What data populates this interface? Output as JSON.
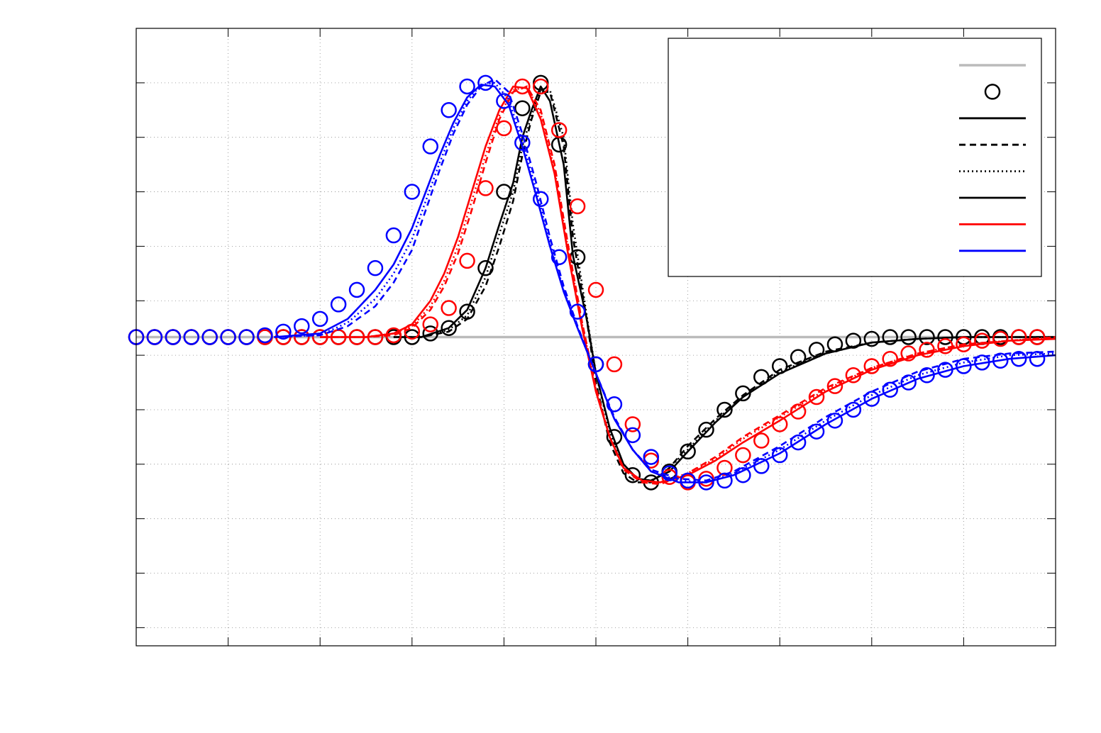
{
  "chart_data": {
    "type": "line",
    "title": "",
    "xlabel": "",
    "ylabel": "",
    "xlim": [
      0,
      10
    ],
    "ylim": [
      -1.7,
      1.7
    ],
    "x_ticks": [
      0,
      1,
      2,
      3,
      4,
      5,
      6,
      7,
      8,
      9,
      10
    ],
    "y_ticks": [
      -1.6,
      -1.3,
      -1.0,
      -0.7,
      -0.4,
      -0.1,
      0.2,
      0.5,
      0.8,
      1.1,
      1.4
    ],
    "grid": true,
    "legend": {
      "placement": "top-right",
      "entries": [
        {
          "color": "#bbbbbb",
          "style": "solid",
          "marker": "none"
        },
        {
          "color": "#000000",
          "style": "none",
          "marker": "circle"
        },
        {
          "color": "#000000",
          "style": "solid",
          "marker": "none"
        },
        {
          "color": "#000000",
          "style": "dashed",
          "marker": "none"
        },
        {
          "color": "#000000",
          "style": "dotted",
          "marker": "none"
        },
        {
          "color": "#000000",
          "style": "solid",
          "marker": "none"
        },
        {
          "color": "#ff0000",
          "style": "solid",
          "marker": "none"
        },
        {
          "color": "#0000ff",
          "style": "solid",
          "marker": "none"
        }
      ]
    },
    "baseline": {
      "y": 0.0,
      "color": "#bbbbbb"
    },
    "series": [
      {
        "color": "#000000",
        "marker": "circle",
        "x": [
          0.0,
          0.2,
          0.4,
          0.6,
          0.8,
          1.0,
          1.2,
          1.4,
          1.6,
          1.8,
          2.0,
          2.2,
          2.4,
          2.6,
          2.8,
          3.0,
          3.2,
          3.4,
          3.6,
          3.8,
          4.0,
          4.2,
          4.4,
          4.6,
          4.8,
          5.0,
          5.2,
          5.4,
          5.6,
          5.8,
          6.0,
          6.2,
          6.4,
          6.6,
          6.8,
          7.0,
          7.2,
          7.4,
          7.6,
          7.8,
          8.0,
          8.2,
          8.4,
          8.6,
          8.8,
          9.0,
          9.2,
          9.4,
          9.6,
          9.8
        ],
        "y": [
          0.0,
          0.0,
          0.0,
          0.0,
          0.0,
          0.0,
          0.0,
          0.0,
          0.0,
          0.0,
          0.0,
          0.0,
          0.0,
          0.0,
          0.0,
          0.0,
          0.02,
          0.05,
          0.14,
          0.38,
          0.8,
          1.26,
          1.4,
          1.06,
          0.44,
          -0.15,
          -0.55,
          -0.76,
          -0.8,
          -0.74,
          -0.63,
          -0.51,
          -0.4,
          -0.31,
          -0.22,
          -0.16,
          -0.11,
          -0.07,
          -0.04,
          -0.02,
          -0.01,
          0.0,
          0.0,
          0.0,
          0.0,
          0.0,
          0.0,
          0.0,
          0.0,
          0.0
        ]
      },
      {
        "color": "#000000",
        "style": "solid",
        "x": [
          2.8,
          3.1,
          3.4,
          3.6,
          3.8,
          3.95,
          4.1,
          4.2,
          4.3,
          4.4,
          4.5,
          4.65,
          4.75,
          4.9,
          5.0,
          5.15,
          5.3,
          5.45,
          5.6,
          5.8,
          6.0,
          6.3,
          6.6,
          7.0,
          7.5,
          8.0,
          8.5,
          9.0,
          10.0
        ],
        "y": [
          0.0,
          0.0,
          0.05,
          0.15,
          0.38,
          0.62,
          0.85,
          1.1,
          1.25,
          1.38,
          1.3,
          0.95,
          0.45,
          0.1,
          -0.2,
          -0.5,
          -0.7,
          -0.78,
          -0.79,
          -0.74,
          -0.63,
          -0.47,
          -0.33,
          -0.2,
          -0.09,
          -0.03,
          -0.01,
          0.0,
          0.0
        ]
      },
      {
        "color": "#000000",
        "style": "dashed",
        "x": [
          2.8,
          3.1,
          3.4,
          3.6,
          3.8,
          3.95,
          4.1,
          4.2,
          4.3,
          4.4,
          4.5,
          4.65,
          4.75,
          4.9,
          5.0,
          5.15,
          5.3,
          5.45,
          5.6,
          5.8,
          6.0,
          6.3,
          6.6,
          7.0,
          7.5,
          8.0,
          8.5,
          9.0,
          10.0
        ],
        "y": [
          0.0,
          0.0,
          0.03,
          0.1,
          0.28,
          0.5,
          0.75,
          1.0,
          1.2,
          1.35,
          1.35,
          1.05,
          0.55,
          0.1,
          -0.25,
          -0.58,
          -0.75,
          -0.8,
          -0.8,
          -0.72,
          -0.6,
          -0.45,
          -0.32,
          -0.18,
          -0.08,
          -0.03,
          -0.01,
          0.0,
          0.0
        ]
      },
      {
        "color": "#000000",
        "style": "dotted",
        "x": [
          2.8,
          3.1,
          3.4,
          3.6,
          3.8,
          3.95,
          4.1,
          4.2,
          4.3,
          4.4,
          4.5,
          4.65,
          4.75,
          4.9,
          5.0,
          5.15,
          5.3,
          5.45,
          5.6,
          5.8,
          6.0,
          6.3,
          6.6,
          7.0,
          7.5,
          8.0,
          8.5,
          9.0,
          10.0
        ],
        "y": [
          0.0,
          0.0,
          0.04,
          0.12,
          0.33,
          0.57,
          0.8,
          1.05,
          1.22,
          1.36,
          1.36,
          1.1,
          0.62,
          0.12,
          -0.2,
          -0.52,
          -0.72,
          -0.78,
          -0.79,
          -0.72,
          -0.62,
          -0.46,
          -0.33,
          -0.19,
          -0.09,
          -0.03,
          -0.01,
          0.0,
          0.0
        ]
      },
      {
        "color": "#ff0000",
        "marker": "circle",
        "x": [
          0.0,
          0.2,
          0.4,
          0.6,
          0.8,
          1.0,
          1.2,
          1.4,
          1.6,
          1.8,
          2.0,
          2.2,
          2.4,
          2.6,
          2.8,
          3.0,
          3.2,
          3.4,
          3.6,
          3.8,
          4.0,
          4.2,
          4.4,
          4.6,
          4.8,
          5.0,
          5.2,
          5.4,
          5.6,
          5.8,
          6.0,
          6.2,
          6.4,
          6.6,
          6.8,
          7.0,
          7.2,
          7.4,
          7.6,
          7.8,
          8.0,
          8.2,
          8.4,
          8.6,
          8.8,
          9.0,
          9.2,
          9.4,
          9.6,
          9.8
        ],
        "y": [
          0.0,
          0.0,
          0.0,
          0.0,
          0.0,
          0.0,
          0.0,
          0.0,
          0.0,
          0.0,
          0.0,
          0.0,
          0.0,
          0.0,
          0.01,
          0.03,
          0.07,
          0.16,
          0.42,
          0.82,
          1.15,
          1.38,
          1.38,
          1.14,
          0.72,
          0.26,
          -0.15,
          -0.48,
          -0.68,
          -0.77,
          -0.8,
          -0.78,
          -0.72,
          -0.65,
          -0.57,
          -0.48,
          -0.41,
          -0.33,
          -0.27,
          -0.21,
          -0.16,
          -0.12,
          -0.09,
          -0.07,
          -0.05,
          -0.04,
          -0.02,
          -0.01,
          0.0,
          0.0
        ]
      },
      {
        "color": "#ff0000",
        "style": "solid",
        "x": [
          2.0,
          2.5,
          2.8,
          3.0,
          3.2,
          3.35,
          3.5,
          3.65,
          3.8,
          3.95,
          4.1,
          4.25,
          4.4,
          4.55,
          4.7,
          4.85,
          5.0,
          5.15,
          5.3,
          5.5,
          5.7,
          6.0,
          6.3,
          6.6,
          7.0,
          7.5,
          8.0,
          8.5,
          9.0,
          9.5,
          10.0
        ],
        "y": [
          0.0,
          0.0,
          0.02,
          0.07,
          0.2,
          0.35,
          0.55,
          0.8,
          1.05,
          1.25,
          1.38,
          1.37,
          1.2,
          0.9,
          0.45,
          0.05,
          -0.3,
          -0.55,
          -0.72,
          -0.79,
          -0.8,
          -0.76,
          -0.68,
          -0.58,
          -0.46,
          -0.3,
          -0.18,
          -0.1,
          -0.05,
          -0.02,
          -0.01
        ]
      },
      {
        "color": "#ff0000",
        "style": "dashed",
        "x": [
          2.0,
          2.5,
          2.8,
          3.0,
          3.2,
          3.35,
          3.5,
          3.65,
          3.8,
          3.95,
          4.1,
          4.25,
          4.4,
          4.55,
          4.7,
          4.85,
          5.0,
          5.15,
          5.3,
          5.5,
          5.7,
          6.0,
          6.3,
          6.6,
          7.0,
          7.5,
          8.0,
          8.5,
          9.0,
          9.5,
          10.0
        ],
        "y": [
          0.0,
          0.0,
          0.01,
          0.05,
          0.15,
          0.28,
          0.46,
          0.7,
          0.96,
          1.2,
          1.35,
          1.38,
          1.25,
          0.95,
          0.5,
          0.08,
          -0.28,
          -0.55,
          -0.73,
          -0.8,
          -0.81,
          -0.75,
          -0.66,
          -0.55,
          -0.43,
          -0.28,
          -0.17,
          -0.09,
          -0.04,
          -0.02,
          0.0
        ]
      },
      {
        "color": "#ff0000",
        "style": "dotted",
        "x": [
          2.0,
          2.5,
          2.8,
          3.0,
          3.2,
          3.35,
          3.5,
          3.65,
          3.8,
          3.95,
          4.1,
          4.25,
          4.4,
          4.55,
          4.7,
          4.85,
          5.0,
          5.15,
          5.3,
          5.5,
          5.7,
          6.0,
          6.3,
          6.6,
          7.0,
          7.5,
          8.0,
          8.5,
          9.0,
          9.5,
          10.0
        ],
        "y": [
          0.0,
          0.0,
          0.02,
          0.06,
          0.17,
          0.31,
          0.5,
          0.75,
          1.0,
          1.22,
          1.36,
          1.38,
          1.23,
          0.92,
          0.48,
          0.07,
          -0.29,
          -0.55,
          -0.72,
          -0.79,
          -0.8,
          -0.75,
          -0.67,
          -0.56,
          -0.44,
          -0.29,
          -0.17,
          -0.09,
          -0.04,
          -0.02,
          0.0
        ]
      },
      {
        "color": "#0000ff",
        "marker": "circle",
        "x": [
          0.0,
          0.2,
          0.4,
          0.6,
          0.8,
          1.0,
          1.2,
          1.4,
          1.6,
          1.8,
          2.0,
          2.2,
          2.4,
          2.6,
          2.8,
          3.0,
          3.2,
          3.4,
          3.6,
          3.8,
          4.0,
          4.2,
          4.4,
          4.6,
          4.8,
          5.0,
          5.2,
          5.4,
          5.6,
          5.8,
          6.0,
          6.2,
          6.4,
          6.6,
          6.8,
          7.0,
          7.2,
          7.4,
          7.6,
          7.8,
          8.0,
          8.2,
          8.4,
          8.6,
          8.8,
          9.0,
          9.2,
          9.4,
          9.6,
          9.8
        ],
        "y": [
          0.0,
          0.0,
          0.0,
          0.0,
          0.0,
          0.0,
          0.0,
          0.01,
          0.03,
          0.06,
          0.1,
          0.18,
          0.26,
          0.38,
          0.56,
          0.8,
          1.05,
          1.25,
          1.38,
          1.4,
          1.3,
          1.07,
          0.76,
          0.44,
          0.14,
          -0.15,
          -0.37,
          -0.54,
          -0.66,
          -0.75,
          -0.79,
          -0.8,
          -0.79,
          -0.76,
          -0.71,
          -0.65,
          -0.58,
          -0.52,
          -0.46,
          -0.4,
          -0.34,
          -0.29,
          -0.25,
          -0.21,
          -0.18,
          -0.16,
          -0.14,
          -0.13,
          -0.12,
          -0.12
        ]
      },
      {
        "color": "#0000ff",
        "style": "solid",
        "x": [
          1.5,
          2.0,
          2.3,
          2.6,
          2.8,
          3.0,
          3.15,
          3.3,
          3.45,
          3.6,
          3.75,
          3.9,
          4.05,
          4.2,
          4.35,
          4.5,
          4.65,
          4.8,
          5.0,
          5.2,
          5.4,
          5.6,
          5.9,
          6.2,
          6.5,
          7.0,
          7.5,
          8.0,
          8.5,
          9.0,
          9.5,
          10.0
        ],
        "y": [
          0.0,
          0.02,
          0.1,
          0.26,
          0.4,
          0.6,
          0.8,
          1.0,
          1.18,
          1.32,
          1.39,
          1.38,
          1.28,
          1.05,
          0.78,
          0.5,
          0.25,
          0.05,
          -0.2,
          -0.45,
          -0.62,
          -0.74,
          -0.8,
          -0.8,
          -0.76,
          -0.64,
          -0.48,
          -0.34,
          -0.23,
          -0.16,
          -0.12,
          -0.1
        ]
      },
      {
        "color": "#0000ff",
        "style": "dashed",
        "x": [
          1.5,
          2.0,
          2.3,
          2.6,
          2.8,
          3.0,
          3.15,
          3.3,
          3.45,
          3.6,
          3.75,
          3.9,
          4.05,
          4.2,
          4.35,
          4.5,
          4.65,
          4.8,
          5.0,
          5.2,
          5.4,
          5.6,
          5.9,
          6.2,
          6.5,
          7.0,
          7.5,
          8.0,
          8.5,
          9.0,
          9.5,
          10.0
        ],
        "y": [
          0.0,
          0.01,
          0.06,
          0.17,
          0.3,
          0.48,
          0.7,
          0.92,
          1.12,
          1.28,
          1.38,
          1.42,
          1.35,
          1.12,
          0.85,
          0.55,
          0.28,
          0.06,
          -0.2,
          -0.44,
          -0.62,
          -0.73,
          -0.78,
          -0.79,
          -0.74,
          -0.6,
          -0.44,
          -0.3,
          -0.19,
          -0.12,
          -0.09,
          -0.08
        ]
      },
      {
        "color": "#0000ff",
        "style": "dotted",
        "x": [
          1.5,
          2.0,
          2.3,
          2.6,
          2.8,
          3.0,
          3.15,
          3.3,
          3.45,
          3.6,
          3.75,
          3.9,
          4.05,
          4.2,
          4.35,
          4.5,
          4.65,
          4.8,
          5.0,
          5.2,
          5.4,
          5.6,
          5.9,
          6.2,
          6.5,
          7.0,
          7.5,
          8.0,
          8.5,
          9.0,
          9.5,
          10.0
        ],
        "y": [
          0.0,
          0.01,
          0.08,
          0.21,
          0.35,
          0.54,
          0.75,
          0.96,
          1.15,
          1.3,
          1.39,
          1.4,
          1.31,
          1.08,
          0.81,
          0.52,
          0.26,
          0.05,
          -0.2,
          -0.45,
          -0.62,
          -0.74,
          -0.79,
          -0.8,
          -0.75,
          -0.62,
          -0.46,
          -0.32,
          -0.21,
          -0.14,
          -0.1,
          -0.09
        ]
      }
    ]
  }
}
